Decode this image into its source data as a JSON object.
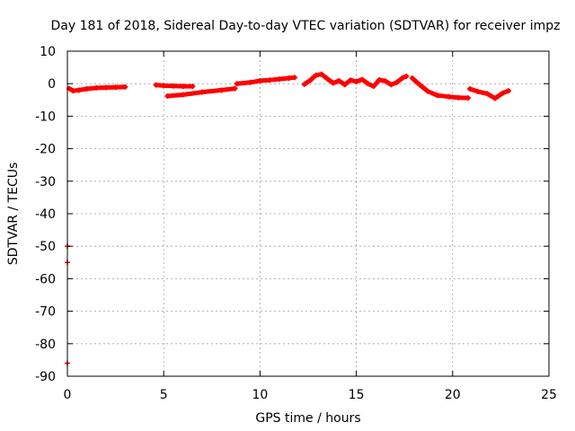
{
  "chart_data": {
    "type": "scatter",
    "title": "Day 181 of 2018, Sidereal Day-to-day VTEC variation (SDTVAR) for receiver impz",
    "xlabel": "GPS time / hours",
    "ylabel": "SDTVAR / TECUs",
    "xlim": [
      0,
      25
    ],
    "ylim": [
      -90,
      10
    ],
    "xticks": [
      "0",
      "5",
      "10",
      "15",
      "20",
      "25"
    ],
    "yticks": [
      "10",
      "0",
      "-10",
      "-20",
      "-30",
      "-40",
      "-50",
      "-60",
      "-70",
      "-80",
      "-90"
    ],
    "grid": true,
    "series": [
      {
        "name": "SDTVAR",
        "color": "#ff0000",
        "marker": "plus",
        "segments": [
          [
            [
              0.0,
              -50.0
            ]
          ],
          [
            [
              0.0,
              -55.0
            ]
          ],
          [
            [
              0.0,
              -86.0
            ]
          ],
          [
            [
              0.1,
              -1.5
            ],
            [
              0.3,
              -2.2
            ],
            [
              0.6,
              -2.0
            ],
            [
              1.0,
              -1.6
            ],
            [
              1.5,
              -1.3
            ],
            [
              2.0,
              -1.2
            ],
            [
              2.5,
              -1.1
            ],
            [
              3.0,
              -1.0
            ]
          ],
          [
            [
              4.6,
              -0.4
            ],
            [
              5.0,
              -0.6
            ],
            [
              5.5,
              -0.7
            ],
            [
              6.0,
              -0.8
            ],
            [
              6.5,
              -0.8
            ]
          ],
          [
            [
              5.2,
              -3.8
            ],
            [
              6.0,
              -3.4
            ],
            [
              7.0,
              -2.6
            ],
            [
              8.0,
              -2.0
            ],
            [
              8.7,
              -1.5
            ]
          ],
          [
            [
              8.8,
              0.0
            ],
            [
              9.5,
              0.4
            ],
            [
              10.0,
              0.9
            ],
            [
              10.5,
              1.1
            ],
            [
              11.0,
              1.4
            ],
            [
              11.5,
              1.7
            ],
            [
              11.8,
              1.9
            ]
          ],
          [
            [
              12.3,
              -0.2
            ],
            [
              12.6,
              1.0
            ],
            [
              12.9,
              2.6
            ],
            [
              13.2,
              2.9
            ],
            [
              13.5,
              1.5
            ],
            [
              13.8,
              0.2
            ],
            [
              14.1,
              0.9
            ],
            [
              14.4,
              -0.3
            ],
            [
              14.7,
              1.1
            ],
            [
              15.0,
              0.6
            ],
            [
              15.3,
              1.3
            ],
            [
              15.6,
              0.0
            ],
            [
              15.9,
              -0.8
            ],
            [
              16.2,
              1.2
            ],
            [
              16.5,
              0.8
            ],
            [
              16.8,
              -0.3
            ],
            [
              17.1,
              0.4
            ],
            [
              17.4,
              1.8
            ],
            [
              17.6,
              2.3
            ]
          ],
          [
            [
              17.9,
              1.7
            ],
            [
              18.3,
              -0.4
            ],
            [
              18.7,
              -2.3
            ],
            [
              19.2,
              -3.6
            ],
            [
              19.8,
              -4.0
            ],
            [
              20.3,
              -4.3
            ],
            [
              20.8,
              -4.4
            ]
          ],
          [
            [
              20.9,
              -1.6
            ],
            [
              21.3,
              -2.4
            ],
            [
              21.8,
              -3.1
            ],
            [
              22.2,
              -4.5
            ],
            [
              22.6,
              -2.9
            ],
            [
              22.9,
              -2.2
            ]
          ]
        ]
      }
    ]
  }
}
